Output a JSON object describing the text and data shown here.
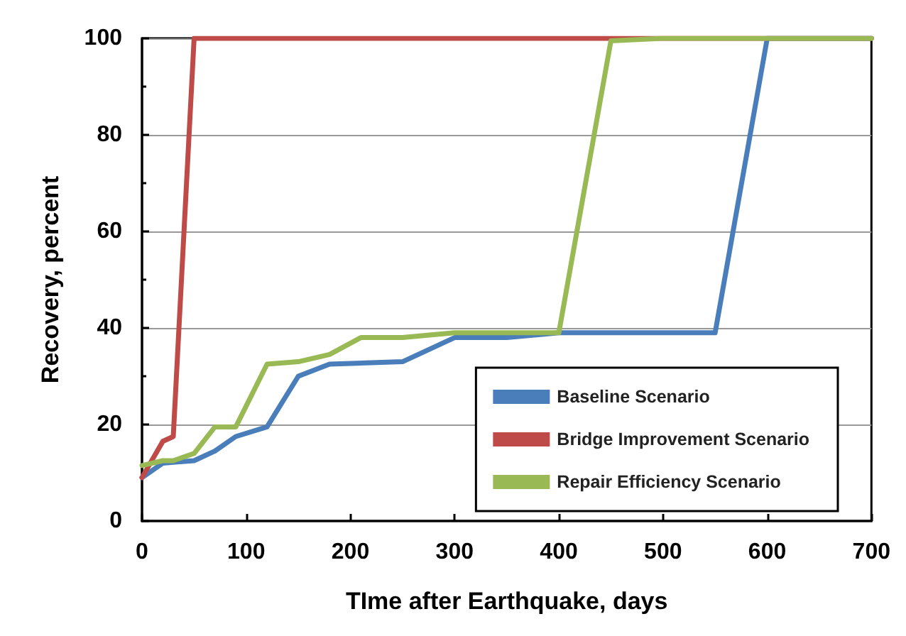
{
  "chart_data": {
    "type": "line",
    "xlabel": "TIme after Earthquake, days",
    "ylabel": "Recovery, percent",
    "xlim": [
      0,
      700
    ],
    "xticks": [
      0,
      100,
      200,
      300,
      400,
      500,
      600,
      700
    ],
    "ylim": [
      0,
      100
    ],
    "yticks": [
      0,
      20,
      40,
      60,
      80,
      100
    ],
    "grid": "y",
    "legend": "bottom right",
    "marker": "none",
    "line_style": "solid",
    "series": [
      {
        "name": "Baseline Scenario",
        "color": "#4a7ebb",
        "x": [
          0,
          20,
          50,
          70,
          90,
          120,
          150,
          180,
          250,
          300,
          350,
          400,
          550,
          600,
          700
        ],
        "values": [
          9,
          12,
          12.5,
          14.5,
          17.5,
          19.5,
          30,
          32.5,
          33,
          38,
          38,
          39,
          39,
          100,
          100
        ]
      },
      {
        "name": "Bridge Improvement Scenario",
        "color": "#be4b48",
        "x": [
          0,
          20,
          30,
          50,
          700
        ],
        "values": [
          9,
          16.5,
          17.5,
          100,
          100
        ]
      },
      {
        "name": "Repair Efficiency Scenario",
        "color": "#98b954",
        "x": [
          0,
          20,
          30,
          50,
          70,
          90,
          120,
          150,
          180,
          210,
          250,
          300,
          400,
          450,
          500,
          700
        ],
        "values": [
          11.5,
          12.5,
          12.5,
          14,
          19.5,
          19.5,
          32.5,
          33,
          34.5,
          38,
          38,
          39,
          39,
          99.5,
          100,
          100
        ]
      }
    ]
  }
}
